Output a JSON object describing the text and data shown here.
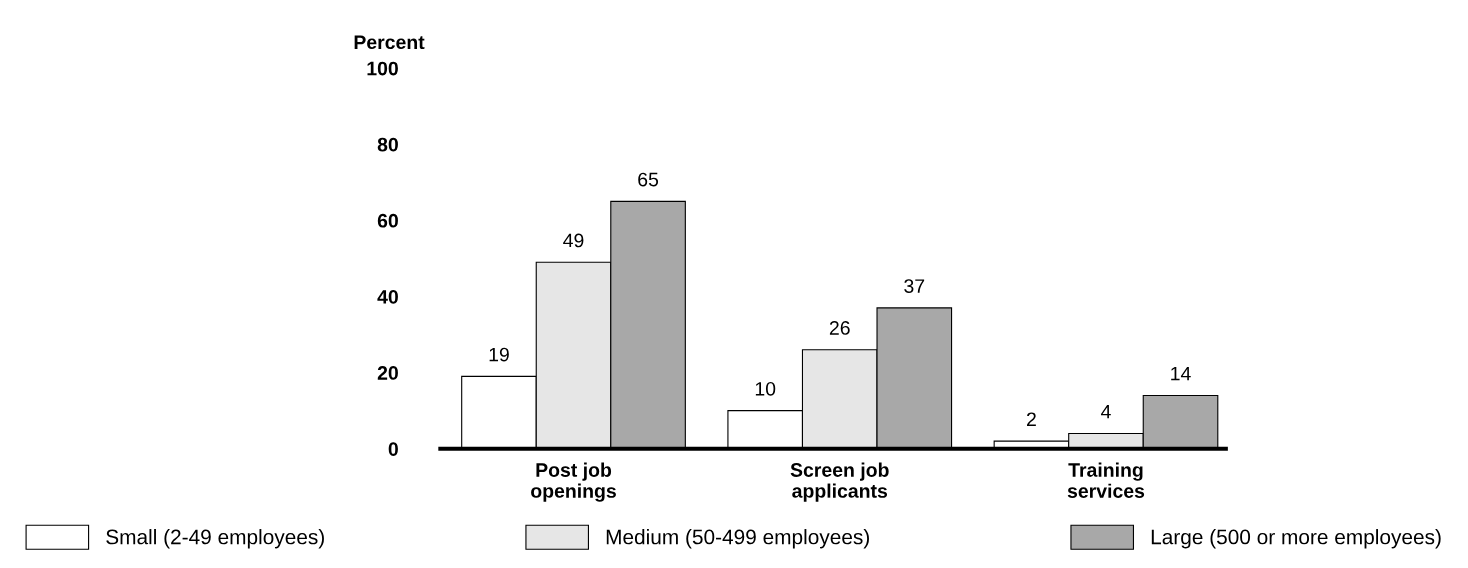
{
  "chart_data": {
    "type": "bar",
    "ylabel": "Percent",
    "categories": [
      "Post job\nopenings",
      "Screen job\napplicants",
      "Training\nservices"
    ],
    "series": [
      {
        "name": "Small (2-49 employees)",
        "color": "#ffffff",
        "values": [
          19,
          10,
          2
        ]
      },
      {
        "name": "Medium (50-499 employees)",
        "color": "#e6e6e6",
        "values": [
          49,
          26,
          4
        ]
      },
      {
        "name": "Large (500 or more employees)",
        "color": "#a8a8a8",
        "values": [
          65,
          37,
          14
        ]
      }
    ],
    "ylim": [
      0,
      100
    ],
    "yticks": [
      0,
      20,
      40,
      60,
      80,
      100
    ],
    "grid": false,
    "legend": "bottom",
    "data_labels": true
  }
}
